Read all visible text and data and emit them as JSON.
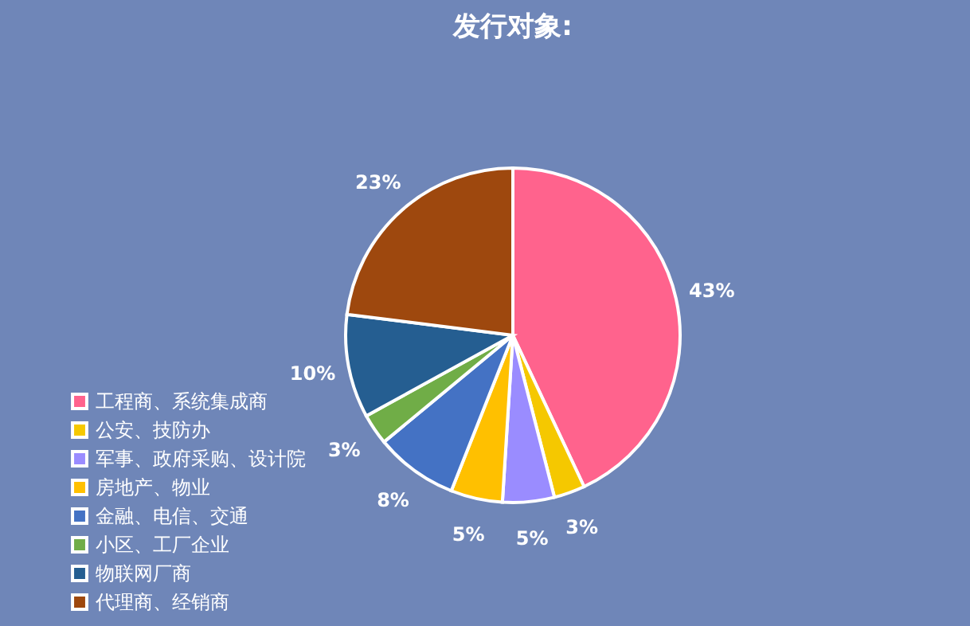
{
  "chart_data": {
    "type": "pie",
    "title": "发行对象:",
    "categories": [
      "工程商、系统集成商",
      "公安、技防办",
      "军事、政府采购、设计院",
      "房地产、物业",
      "金融、电信、交通",
      "小区、工厂企业",
      "物联网厂商",
      "代理商、经销商"
    ],
    "values": [
      43,
      3,
      5,
      5,
      8,
      3,
      10,
      23
    ],
    "colors": [
      "#ff638d",
      "#f5c800",
      "#9a8cff",
      "#ffc000",
      "#4472c4",
      "#70ad47",
      "#255e91",
      "#9e480e"
    ],
    "value_labels": [
      "43%",
      "3%",
      "5%",
      "5%",
      "8%",
      "3%",
      "10%",
      "23%"
    ],
    "legend": "bottom left"
  }
}
